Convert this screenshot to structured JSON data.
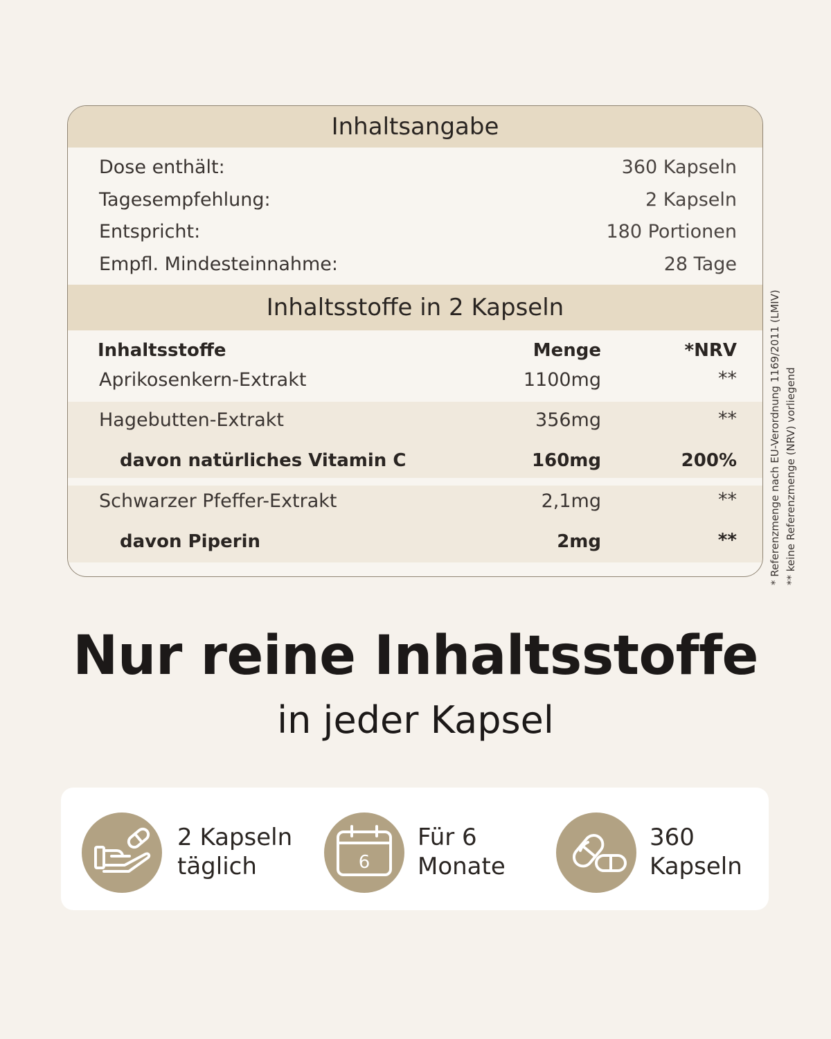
{
  "contents": {
    "title": "Inhaltsangabe",
    "rows": [
      {
        "label": "Dose enthält:",
        "value": "360 Kapseln"
      },
      {
        "label": "Tagesempfehlung:",
        "value": "2 Kapseln"
      },
      {
        "label": "Entspricht:",
        "value": "180 Portionen"
      },
      {
        "label": "Empfl. Mindesteinnahme:",
        "value": "28 Tage"
      }
    ]
  },
  "ingredients": {
    "title": "Inhaltsstoffe in 2 Kapseln",
    "headers": {
      "name": "Inhaltsstoffe",
      "amount": "Menge",
      "nrv": "*NRV"
    },
    "rows": [
      {
        "name": "Aprikosenkern-Extrakt",
        "amount": "1100mg",
        "nrv": "**"
      },
      {
        "name": "Hagebutten-Extrakt",
        "amount": "356mg",
        "nrv": "**"
      },
      {
        "name": "davon natürliches Vitamin C",
        "amount": "160mg",
        "nrv": "200%"
      },
      {
        "name": "Schwarzer Pfeffer-Extrakt",
        "amount": "2,1mg",
        "nrv": "**"
      },
      {
        "name": "davon Piperin",
        "amount": "2mg",
        "nrv": "**"
      }
    ]
  },
  "footnotes": {
    "line1": "* Referenzmenge nach EU-Verordnung 1169/2011 (LMIV)",
    "line2": "** keine Referenzmenge (NRV) vorliegend"
  },
  "headline": {
    "title": "Nur reine Inhaltsstoffe",
    "subtitle": "in jeder Kapsel"
  },
  "features": [
    {
      "icon": "hand-capsule-icon",
      "line1": "2 Kapseln",
      "line2": "täglich"
    },
    {
      "icon": "calendar-icon",
      "icon_text": "6",
      "line1": "Für 6",
      "line2": "Monate"
    },
    {
      "icon": "capsules-icon",
      "line1": "360",
      "line2": "Kapseln"
    }
  ],
  "colors": {
    "background": "#f6f2ec",
    "header_band": "#e6dac4",
    "row_shade": "#f0e9dd",
    "icon_circle": "#b2a283",
    "text": "#2a2522"
  }
}
